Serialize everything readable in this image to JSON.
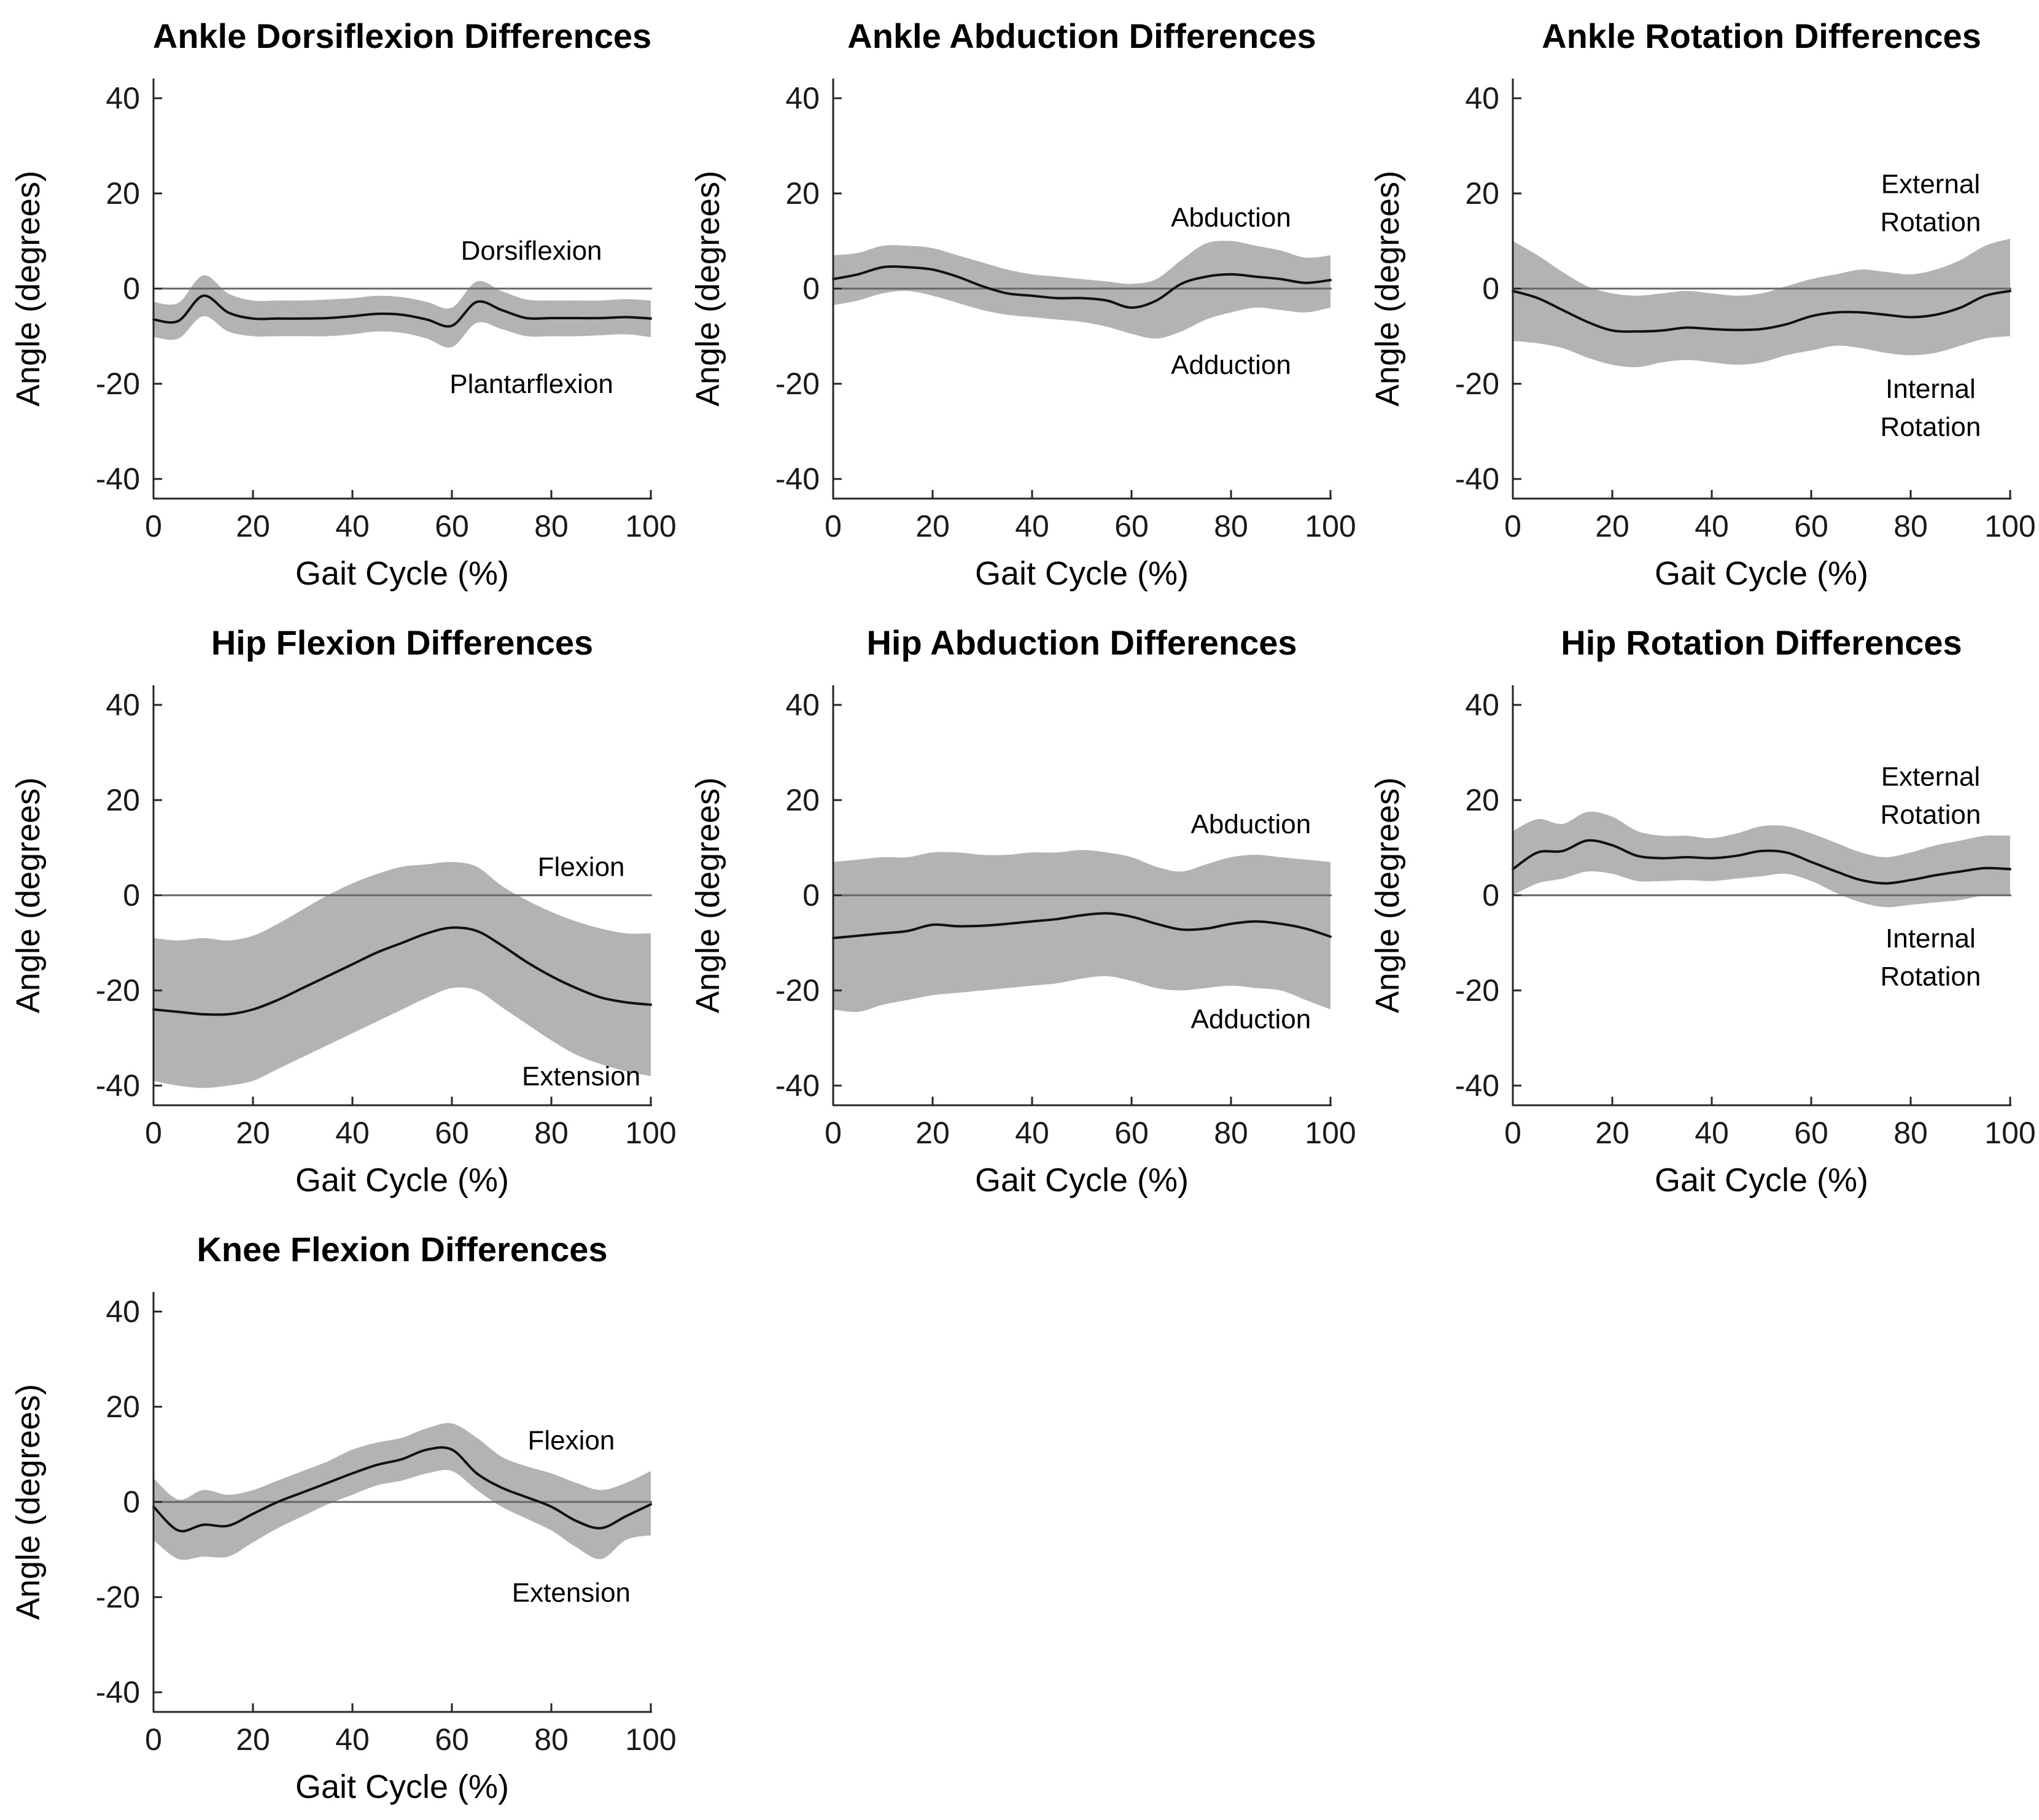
{
  "figure": {
    "background": "#ffffff",
    "colors": {
      "band": "#b3b3b3",
      "mean_line": "#111111",
      "zero_line": "#666666",
      "axis": "#262626",
      "text": "#1a1a1a",
      "annotation_text": "#000000"
    }
  },
  "chart_data": [
    {
      "id": "ankle-dorsiflexion",
      "type": "line",
      "title": "Ankle Dorsiflexion Differences",
      "xlabel": "Gait Cycle (%)",
      "ylabel": "Angle (degrees)",
      "xlim": [
        0,
        100
      ],
      "ylim": [
        -44,
        44
      ],
      "xticks": [
        0,
        20,
        40,
        60,
        80,
        100
      ],
      "yticks": [
        -40,
        -20,
        0,
        20,
        40
      ],
      "grid": {
        "row": 1,
        "col": 1
      },
      "zero_line": true,
      "legend": "none",
      "annotations": [
        {
          "text": "Dorsiflexion",
          "x": 76,
          "y": 8
        },
        {
          "text": "Plantarflexion",
          "x": 76,
          "y": -20
        }
      ],
      "x": [
        0,
        5,
        10,
        15,
        20,
        25,
        30,
        35,
        40,
        45,
        50,
        55,
        60,
        65,
        70,
        75,
        80,
        85,
        90,
        95,
        100
      ],
      "series": [
        {
          "name": "mean",
          "values": [
            -6.5,
            -6.8,
            -1.5,
            -5,
            -6.3,
            -6.3,
            -6.3,
            -6.2,
            -5.8,
            -5.3,
            -5.5,
            -6.5,
            -7.8,
            -2.8,
            -4.5,
            -6.2,
            -6.2,
            -6.2,
            -6.2,
            -6,
            -6.3
          ]
        },
        {
          "name": "upper_sd",
          "values": [
            -2.8,
            -3,
            2.8,
            -1,
            -2.5,
            -2.5,
            -2.5,
            -2.3,
            -2,
            -1.5,
            -1.8,
            -2.8,
            -4,
            1.5,
            -0.5,
            -2.3,
            -2.5,
            -2.5,
            -2.5,
            -2.2,
            -2.5
          ]
        },
        {
          "name": "lower_sd",
          "values": [
            -10.2,
            -10.5,
            -5.8,
            -9,
            -10,
            -10,
            -10,
            -10,
            -9.6,
            -9,
            -9.3,
            -10.5,
            -12.3,
            -7.2,
            -8.5,
            -10,
            -10,
            -10,
            -9.8,
            -9.6,
            -10.2
          ]
        }
      ]
    },
    {
      "id": "ankle-abduction",
      "type": "line",
      "title": "Ankle Abduction Differences",
      "xlabel": "Gait Cycle (%)",
      "ylabel": "Angle (degrees)",
      "xlim": [
        0,
        100
      ],
      "ylim": [
        -44,
        44
      ],
      "xticks": [
        0,
        20,
        40,
        60,
        80,
        100
      ],
      "yticks": [
        -40,
        -20,
        0,
        20,
        40
      ],
      "grid": {
        "row": 1,
        "col": 2
      },
      "zero_line": true,
      "legend": "none",
      "annotations": [
        {
          "text": "Abduction",
          "x": 80,
          "y": 15
        },
        {
          "text": "Adduction",
          "x": 80,
          "y": -16
        }
      ],
      "x": [
        0,
        5,
        10,
        15,
        20,
        25,
        30,
        35,
        40,
        45,
        50,
        55,
        60,
        65,
        70,
        75,
        80,
        85,
        90,
        95,
        100
      ],
      "series": [
        {
          "name": "mean",
          "values": [
            2,
            3,
            4.5,
            4.5,
            4,
            2.5,
            0.5,
            -1,
            -1.5,
            -2,
            -2,
            -2.5,
            -4,
            -2.5,
            1,
            2.5,
            3,
            2.5,
            2,
            1.2,
            1.8
          ]
        },
        {
          "name": "upper_sd",
          "values": [
            7,
            7.5,
            9,
            9,
            8.5,
            7,
            5.5,
            4,
            3,
            2.5,
            2,
            1.5,
            1,
            2,
            6,
            9.5,
            10,
            9,
            8,
            6.5,
            7
          ]
        },
        {
          "name": "lower_sd",
          "values": [
            -3.5,
            -2.5,
            -1,
            -0.5,
            -1.5,
            -3,
            -4.5,
            -5.5,
            -6,
            -6.5,
            -7,
            -8,
            -9.5,
            -10.5,
            -9,
            -6.5,
            -5,
            -4,
            -4.5,
            -5,
            -4
          ]
        }
      ]
    },
    {
      "id": "ankle-rotation",
      "type": "line",
      "title": "Ankle Rotation Differences",
      "xlabel": "Gait Cycle (%)",
      "ylabel": "Angle (degrees)",
      "xlim": [
        0,
        100
      ],
      "ylim": [
        -44,
        44
      ],
      "xticks": [
        0,
        20,
        40,
        60,
        80,
        100
      ],
      "yticks": [
        -40,
        -20,
        0,
        20,
        40
      ],
      "grid": {
        "row": 1,
        "col": 3
      },
      "zero_line": true,
      "legend": "none",
      "annotations": [
        {
          "text": "External",
          "x": 84,
          "y": 22
        },
        {
          "text": "Rotation",
          "x": 84,
          "y": 14
        },
        {
          "text": "Internal",
          "x": 84,
          "y": -21
        },
        {
          "text": "Rotation",
          "x": 84,
          "y": -29
        }
      ],
      "x": [
        0,
        5,
        10,
        15,
        20,
        25,
        30,
        35,
        40,
        45,
        50,
        55,
        60,
        65,
        70,
        75,
        80,
        85,
        90,
        95,
        100
      ],
      "series": [
        {
          "name": "mean",
          "values": [
            -0.5,
            -2,
            -4.5,
            -7,
            -8.8,
            -9,
            -8.8,
            -8.2,
            -8.5,
            -8.7,
            -8.5,
            -7.5,
            -5.8,
            -5,
            -5,
            -5.5,
            -6,
            -5.5,
            -4,
            -1.5,
            -0.5
          ]
        },
        {
          "name": "upper_sd",
          "values": [
            10,
            7,
            3.5,
            0.5,
            -1,
            -1.5,
            -1,
            -0.5,
            -1,
            -1.5,
            -1,
            0.5,
            2,
            3,
            4,
            3.5,
            3,
            4,
            6,
            9,
            10.5
          ]
        },
        {
          "name": "lower_sd",
          "values": [
            -11,
            -11.5,
            -12.5,
            -14.5,
            -16,
            -16.5,
            -15.5,
            -15,
            -15.5,
            -16,
            -15.5,
            -14,
            -13,
            -12,
            -12.5,
            -13.5,
            -14,
            -13.5,
            -12,
            -10.5,
            -10
          ]
        }
      ]
    },
    {
      "id": "hip-flexion",
      "type": "line",
      "title": "Hip Flexion Differences",
      "xlabel": "Gait Cycle (%)",
      "ylabel": "Angle (degrees)",
      "xlim": [
        0,
        100
      ],
      "ylim": [
        -44,
        44
      ],
      "xticks": [
        0,
        20,
        40,
        60,
        80,
        100
      ],
      "yticks": [
        -40,
        -20,
        0,
        20,
        40
      ],
      "grid": {
        "row": 2,
        "col": 1
      },
      "zero_line": true,
      "legend": "none",
      "annotations": [
        {
          "text": "Flexion",
          "x": 86,
          "y": 6
        },
        {
          "text": "Extension",
          "x": 86,
          "y": -38
        }
      ],
      "x": [
        0,
        5,
        10,
        15,
        20,
        25,
        30,
        35,
        40,
        45,
        50,
        55,
        60,
        65,
        70,
        75,
        80,
        85,
        90,
        95,
        100
      ],
      "series": [
        {
          "name": "mean",
          "values": [
            -24,
            -24.5,
            -25,
            -25,
            -24,
            -22,
            -19.5,
            -17,
            -14.5,
            -12,
            -10,
            -8,
            -6.8,
            -7.5,
            -10.5,
            -14,
            -17,
            -19.5,
            -21.5,
            -22.5,
            -23
          ]
        },
        {
          "name": "upper_sd",
          "values": [
            -9,
            -9.5,
            -9,
            -9.5,
            -8.5,
            -6,
            -3,
            0,
            2.5,
            4.5,
            6,
            6.5,
            7,
            6,
            2,
            -1,
            -3.5,
            -5.5,
            -7,
            -8,
            -8
          ]
        },
        {
          "name": "lower_sd",
          "values": [
            -39,
            -40,
            -40.5,
            -40,
            -39,
            -36.5,
            -34,
            -31.5,
            -29,
            -26.5,
            -24,
            -21.5,
            -19.5,
            -20,
            -23.5,
            -27,
            -30.5,
            -33.5,
            -35.5,
            -37,
            -38
          ]
        }
      ]
    },
    {
      "id": "hip-abduction",
      "type": "line",
      "title": "Hip Abduction Differences",
      "xlabel": "Gait Cycle (%)",
      "ylabel": "Angle (degrees)",
      "xlim": [
        0,
        100
      ],
      "ylim": [
        -44,
        44
      ],
      "xticks": [
        0,
        20,
        40,
        60,
        80,
        100
      ],
      "yticks": [
        -40,
        -20,
        0,
        20,
        40
      ],
      "grid": {
        "row": 2,
        "col": 2
      },
      "zero_line": true,
      "legend": "none",
      "annotations": [
        {
          "text": "Abduction",
          "x": 84,
          "y": 15
        },
        {
          "text": "Adduction",
          "x": 84,
          "y": -26
        }
      ],
      "x": [
        0,
        5,
        10,
        15,
        20,
        25,
        30,
        35,
        40,
        45,
        50,
        55,
        60,
        65,
        70,
        75,
        80,
        85,
        90,
        95,
        100
      ],
      "series": [
        {
          "name": "mean",
          "values": [
            -9,
            -8.5,
            -8,
            -7.5,
            -6.2,
            -6.5,
            -6.4,
            -6,
            -5.5,
            -5,
            -4.2,
            -3.8,
            -4.5,
            -6,
            -7.2,
            -7,
            -6,
            -5.5,
            -6,
            -7,
            -8.7
          ]
        },
        {
          "name": "upper_sd",
          "values": [
            7,
            7.5,
            8,
            8,
            9,
            9,
            8.5,
            8.5,
            9,
            9,
            9.5,
            9,
            8,
            6,
            5,
            6.5,
            8,
            8.5,
            8,
            7.5,
            7
          ]
        },
        {
          "name": "lower_sd",
          "values": [
            -24,
            -24.5,
            -23,
            -22,
            -21,
            -20.5,
            -20,
            -19.5,
            -19,
            -18.5,
            -17.5,
            -17,
            -18,
            -19.5,
            -20,
            -19.5,
            -19,
            -19.5,
            -20,
            -22,
            -24
          ]
        }
      ]
    },
    {
      "id": "hip-rotation",
      "type": "line",
      "title": "Hip Rotation Differences",
      "xlabel": "Gait Cycle (%)",
      "ylabel": "Angle (degrees)",
      "xlim": [
        0,
        100
      ],
      "ylim": [
        -44,
        44
      ],
      "xticks": [
        0,
        20,
        40,
        60,
        80,
        100
      ],
      "yticks": [
        -40,
        -20,
        0,
        20,
        40
      ],
      "grid": {
        "row": 2,
        "col": 3
      },
      "zero_line": true,
      "legend": "none",
      "annotations": [
        {
          "text": "External",
          "x": 84,
          "y": 25
        },
        {
          "text": "Rotation",
          "x": 84,
          "y": 17
        },
        {
          "text": "Internal",
          "x": 84,
          "y": -9
        },
        {
          "text": "Rotation",
          "x": 84,
          "y": -17
        }
      ],
      "x": [
        0,
        5,
        10,
        15,
        20,
        25,
        30,
        35,
        40,
        45,
        50,
        55,
        60,
        65,
        70,
        75,
        80,
        85,
        90,
        95,
        100
      ],
      "series": [
        {
          "name": "mean",
          "values": [
            5.5,
            9,
            9.3,
            11.5,
            10.5,
            8.3,
            7.8,
            8,
            7.8,
            8.3,
            9.3,
            9,
            7,
            5,
            3.2,
            2.5,
            3.2,
            4.2,
            5,
            5.7,
            5.5
          ]
        },
        {
          "name": "upper_sd",
          "values": [
            13.5,
            16,
            15,
            17.5,
            16.5,
            13.5,
            12.5,
            12.5,
            12,
            13,
            14.5,
            14.5,
            13,
            11,
            9,
            8,
            9,
            10.5,
            11.5,
            12.5,
            12.5
          ]
        },
        {
          "name": "lower_sd",
          "values": [
            0,
            2.5,
            3.5,
            5,
            4.5,
            3,
            3,
            3.2,
            3,
            3.5,
            4,
            4.5,
            3,
            0.5,
            -1.5,
            -2.5,
            -2,
            -1.5,
            -1,
            0,
            0
          ]
        }
      ]
    },
    {
      "id": "knee-flexion",
      "type": "line",
      "title": "Knee Flexion Differences",
      "xlabel": "Gait Cycle (%)",
      "ylabel": "Angle (degrees)",
      "xlim": [
        0,
        100
      ],
      "ylim": [
        -44,
        44
      ],
      "xticks": [
        0,
        20,
        40,
        60,
        80,
        100
      ],
      "yticks": [
        -40,
        -20,
        0,
        20,
        40
      ],
      "grid": {
        "row": 3,
        "col": 1
      },
      "zero_line": true,
      "legend": "none",
      "annotations": [
        {
          "text": "Flexion",
          "x": 84,
          "y": 13
        },
        {
          "text": "Extension",
          "x": 84,
          "y": -19
        }
      ],
      "x": [
        0,
        5,
        10,
        15,
        20,
        25,
        30,
        35,
        40,
        45,
        50,
        55,
        60,
        65,
        70,
        75,
        80,
        85,
        90,
        95,
        100
      ],
      "series": [
        {
          "name": "mean",
          "values": [
            -1,
            -6,
            -4.8,
            -5,
            -2.5,
            0,
            2,
            4,
            6,
            7.8,
            9,
            11,
            11,
            6,
            3,
            1,
            -1,
            -4,
            -5.5,
            -3,
            -0.5
          ]
        },
        {
          "name": "upper_sd",
          "values": [
            5,
            0.5,
            2.5,
            1.5,
            2.5,
            4.5,
            6.5,
            8.5,
            11,
            12.5,
            13.5,
            15.5,
            16.5,
            13.5,
            9.5,
            7.5,
            6,
            4,
            2.5,
            4,
            6.5
          ]
        },
        {
          "name": "lower_sd",
          "values": [
            -8,
            -12,
            -11.5,
            -11.5,
            -8.5,
            -5.5,
            -3,
            -0.5,
            1.5,
            3.5,
            4.5,
            6,
            6.5,
            2.5,
            -1,
            -3.5,
            -6,
            -9.5,
            -12,
            -8,
            -7
          ]
        }
      ]
    }
  ]
}
